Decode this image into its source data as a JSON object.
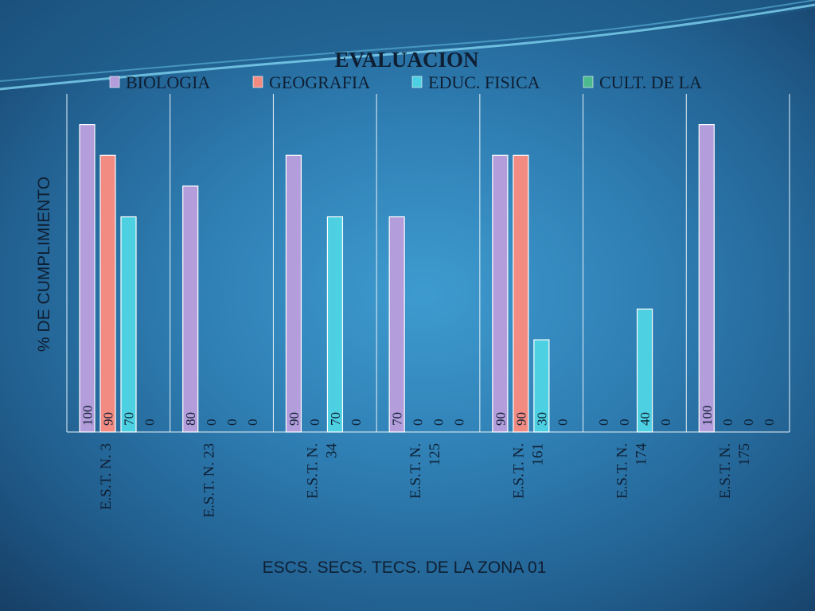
{
  "chart_data": {
    "type": "bar",
    "title": "EVALUACION",
    "ylabel": "%  DE CUMPLIMIENTO",
    "xlabel": "ESCS. SECS. TECS.  DE  LA  ZONA  01",
    "ylim": [
      0,
      110
    ],
    "grid": false,
    "legend_position": "top",
    "categories": [
      [
        "E.S.T. N. 3"
      ],
      [
        "E.S.T. N. 23"
      ],
      [
        "E.S.T. N.",
        "34"
      ],
      [
        "E.S.T. N.",
        "125"
      ],
      [
        "E.S.T. N.",
        "161"
      ],
      [
        "E.S.T. N.",
        "174"
      ],
      [
        "E.S.T. N.",
        "175"
      ]
    ],
    "series": [
      {
        "name": "BIOLOGIA",
        "color": "#b39ddb",
        "values": [
          100,
          80,
          90,
          70,
          90,
          0,
          100
        ]
      },
      {
        "name": "GEOGRAFIA",
        "color": "#f28b82",
        "values": [
          90,
          0,
          0,
          0,
          90,
          0,
          0
        ]
      },
      {
        "name": "EDUC. FISICA",
        "color": "#4dd0e1",
        "values": [
          70,
          0,
          70,
          0,
          30,
          40,
          0
        ]
      },
      {
        "name": "CULT. DE LA",
        "color": "#4cba8e",
        "values": [
          0,
          0,
          0,
          0,
          0,
          0,
          0
        ]
      }
    ]
  }
}
